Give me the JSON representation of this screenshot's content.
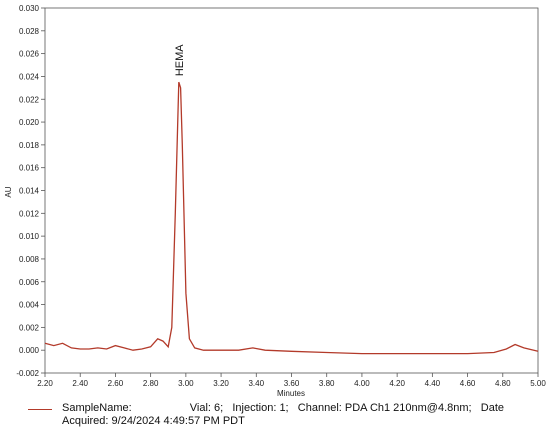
{
  "chart_data": {
    "type": "line",
    "xlabel": "Minutes",
    "ylabel": "AU",
    "xlim": [
      2.2,
      5.0
    ],
    "ylim": [
      -0.002,
      0.03
    ],
    "x_ticks": [
      "2.20",
      "2.40",
      "2.60",
      "2.80",
      "3.00",
      "3.20",
      "3.40",
      "3.60",
      "3.80",
      "4.00",
      "4.20",
      "4.40",
      "4.60",
      "4.80",
      "5.00"
    ],
    "y_ticks": [
      "-0.002",
      "0.000",
      "0.002",
      "0.004",
      "0.006",
      "0.008",
      "0.010",
      "0.012",
      "0.014",
      "0.016",
      "0.018",
      "0.020",
      "0.022",
      "0.024",
      "0.026",
      "0.028",
      "0.030"
    ],
    "series": [
      {
        "color": "#b33a2a",
        "points": [
          [
            2.2,
            0.0006
          ],
          [
            2.25,
            0.0004
          ],
          [
            2.3,
            0.0006
          ],
          [
            2.35,
            0.0002
          ],
          [
            2.4,
            0.0001
          ],
          [
            2.45,
            0.0001
          ],
          [
            2.5,
            0.0002
          ],
          [
            2.55,
            0.0001
          ],
          [
            2.6,
            0.0004
          ],
          [
            2.65,
            0.0002
          ],
          [
            2.7,
            0.0
          ],
          [
            2.75,
            0.0001
          ],
          [
            2.8,
            0.0003
          ],
          [
            2.84,
            0.001
          ],
          [
            2.87,
            0.0008
          ],
          [
            2.9,
            0.0003
          ],
          [
            2.92,
            0.002
          ],
          [
            2.94,
            0.012
          ],
          [
            2.96,
            0.0235
          ],
          [
            2.97,
            0.023
          ],
          [
            2.98,
            0.018
          ],
          [
            3.0,
            0.005
          ],
          [
            3.02,
            0.001
          ],
          [
            3.05,
            0.0002
          ],
          [
            3.1,
            0.0
          ],
          [
            3.2,
            0.0
          ],
          [
            3.3,
            0.0
          ],
          [
            3.38,
            0.0002
          ],
          [
            3.45,
            0.0
          ],
          [
            3.6,
            -0.0001
          ],
          [
            3.8,
            -0.0002
          ],
          [
            4.0,
            -0.0003
          ],
          [
            4.2,
            -0.0003
          ],
          [
            4.4,
            -0.0003
          ],
          [
            4.6,
            -0.0003
          ],
          [
            4.75,
            -0.0002
          ],
          [
            4.82,
            0.0001
          ],
          [
            4.87,
            0.0005
          ],
          [
            4.92,
            0.0002
          ],
          [
            5.0,
            -0.0001
          ]
        ]
      }
    ],
    "annotations": [
      {
        "text": "HEMA",
        "x": 2.96
      }
    ]
  },
  "legend": {
    "line1": "SampleName:                   Vial: 6;   Injection: 1;   Channel: PDA Ch1 210nm@4.8nm;   Date",
    "line2": "Acquired: 9/24/2024 4:49:57 PM PDT"
  }
}
